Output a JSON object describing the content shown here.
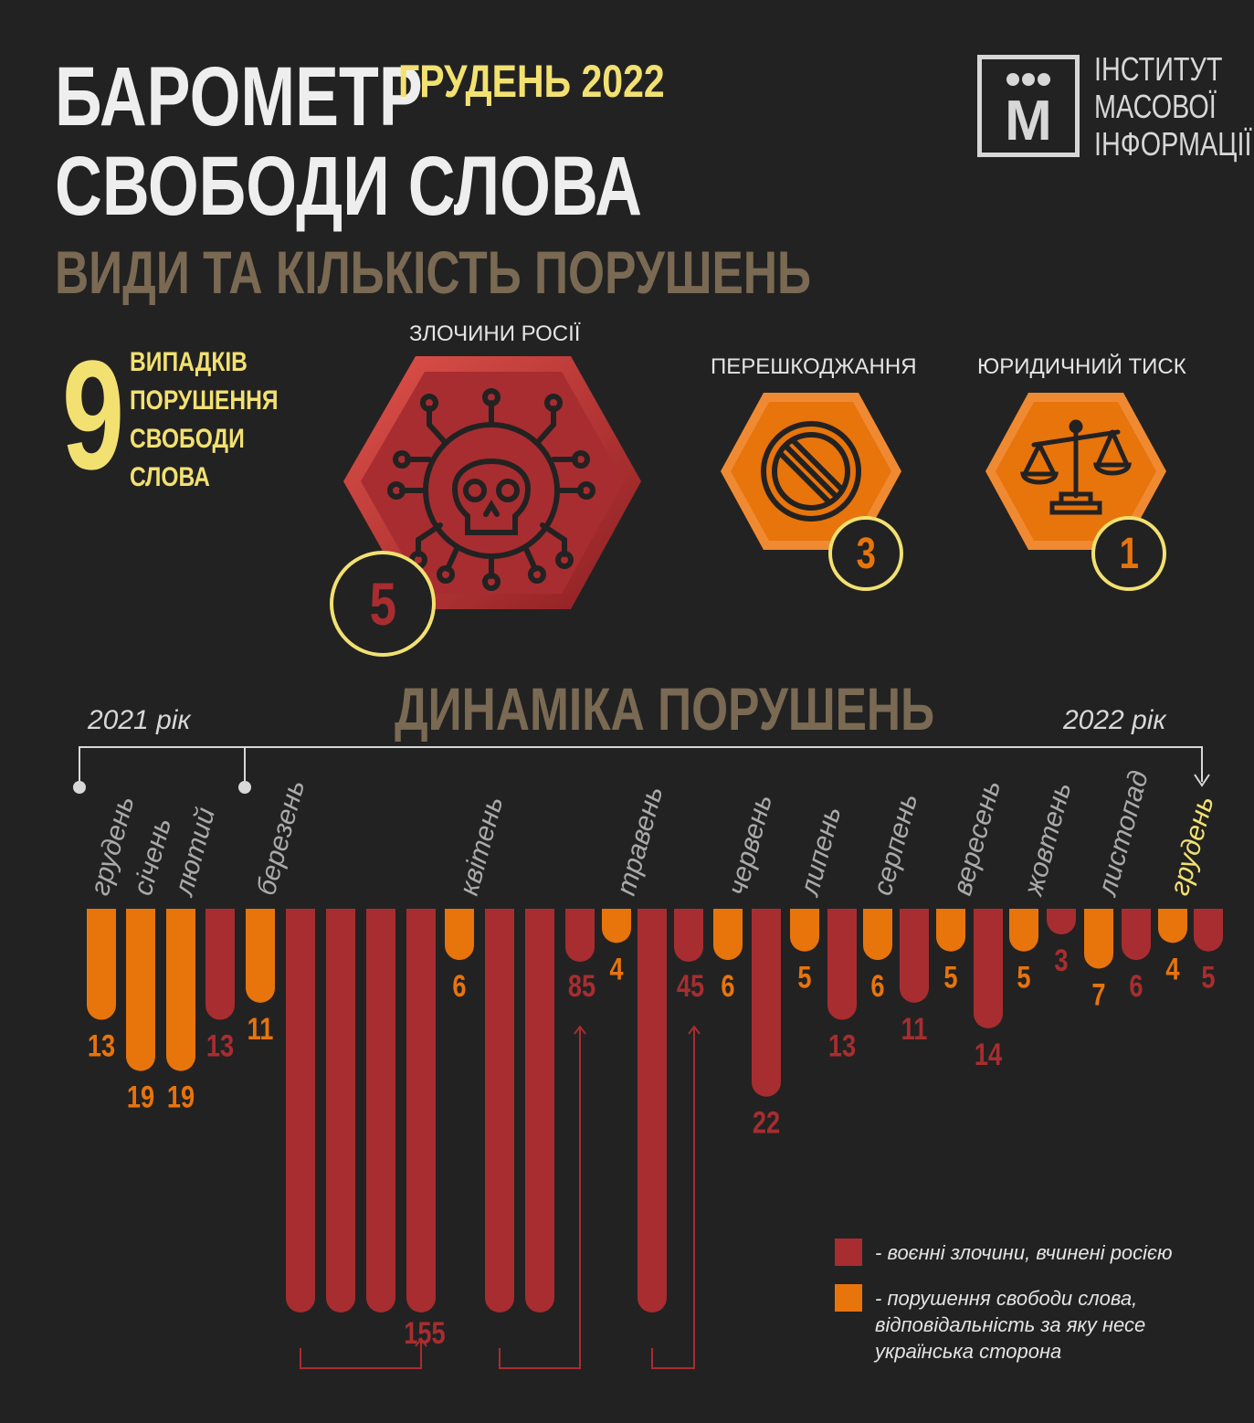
{
  "header": {
    "title_line1": "БАРОМЕТР",
    "title_line2": "СВОБОДИ СЛОВА",
    "period": "ГРУДЕНЬ 2022",
    "subtitle": "ВИДИ ТА КІЛЬКІСТЬ ПОРУШЕНЬ"
  },
  "logo": {
    "letter": "М",
    "line1": "ІНСТИТУТ",
    "line2": "МАСОВОЇ",
    "line3": "ІНФОРМАЦІЇ"
  },
  "summary": {
    "total": "9",
    "line1": "ВИПАДКІВ",
    "line2": "ПОРУШЕННЯ",
    "line3": "СВОБОДИ",
    "line4": "СЛОВА"
  },
  "categories": [
    {
      "label": "ЗЛОЧИНИ РОСІЇ",
      "count": "5",
      "icon": "skull-virus-icon",
      "color": "#a82d30"
    },
    {
      "label": "ПЕРЕШКОДЖАННЯ",
      "count": "3",
      "icon": "prohibited-icon",
      "color": "#e8740c"
    },
    {
      "label": "ЮРИДИЧНИЙ ТИСК",
      "count": "1",
      "icon": "scales-icon",
      "color": "#e8740c"
    }
  ],
  "dynamics": {
    "title": "ДИНАМІКА ПОРУШЕНЬ",
    "year_start": "2021 рік",
    "year_end": "2022 рік"
  },
  "legend": {
    "war_crimes": "- воєнні злочини, вчинені росією",
    "violations_line1": "- порушення свободи слова,",
    "violations_line2": "відповідальність за яку несе",
    "violations_line3": "українська сторона"
  },
  "colors": {
    "war_crimes": "#a82d30",
    "violations": "#e8740c",
    "highlight": "#f2e171",
    "month_label": "#aaaaaa"
  },
  "chart_data": {
    "type": "bar",
    "orientation": "downward",
    "categories": [
      "грудень",
      "січень",
      "лютий",
      "березень",
      "квітень",
      "травень",
      "червень",
      "липень",
      "серпень",
      "вересень",
      "жовтень",
      "листопад",
      "грудень"
    ],
    "highlight_category": "грудень 2022",
    "series": [
      {
        "name": "- воєнні злочини, вчинені росією",
        "values": [
          null,
          null,
          13,
          155,
          85,
          45,
          22,
          13,
          11,
          14,
          3,
          6,
          5
        ]
      },
      {
        "name": "- порушення свободи слова, відповідальність за яку несе українська сторона",
        "values": [
          13,
          19,
          19,
          11,
          6,
          4,
          6,
          5,
          6,
          5,
          5,
          7,
          4
        ]
      }
    ],
    "value_labels": [
      "13",
      "19",
      "19",
      "13",
      "11",
      "155",
      "6",
      "85",
      "4",
      "45",
      "6",
      "22",
      "5",
      "13",
      "6",
      "11",
      "5",
      "14",
      "5",
      "3",
      "7",
      "6",
      "4",
      "5"
    ],
    "axis_break": true
  }
}
